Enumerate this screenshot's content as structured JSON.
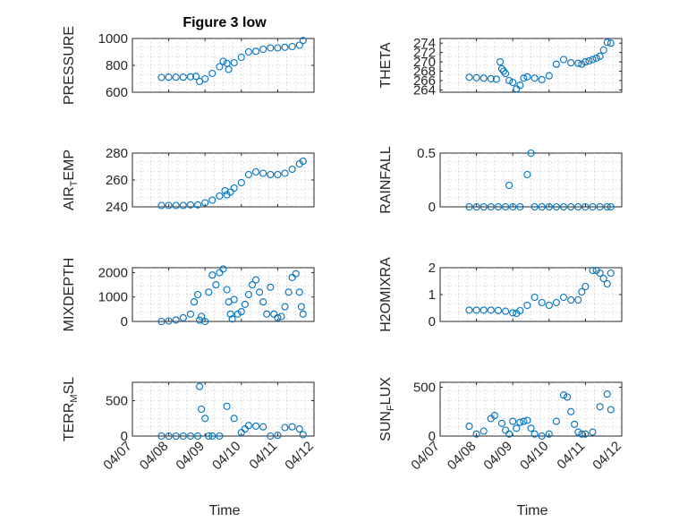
{
  "figure": {
    "title": "Figure 3 low",
    "xlabel": "Time",
    "marker_color": "#0072BD",
    "x_ticks": [
      "04/07",
      "04/08",
      "04/09",
      "04/10",
      "04/11",
      "04/12"
    ]
  },
  "chart_data": [
    {
      "type": "scatter",
      "ylabel": "PRESSURE",
      "ylim": [
        600,
        1000
      ],
      "yticks": [
        "600",
        "800",
        "1000"
      ],
      "yticks_values": [
        600,
        800,
        1000
      ],
      "xlim": [
        0,
        5
      ],
      "grid": true,
      "series": [
        {
          "x": [
            0.8,
            1.0,
            1.2,
            1.4,
            1.6,
            1.75,
            1.85,
            2.0,
            2.2,
            2.4,
            2.5,
            2.6,
            2.65,
            2.8,
            3.0,
            3.2,
            3.4,
            3.6,
            3.8,
            4.0,
            4.2,
            4.4,
            4.6,
            4.7
          ],
          "y": [
            710,
            712,
            712,
            712,
            715,
            718,
            680,
            700,
            740,
            790,
            830,
            815,
            770,
            820,
            860,
            900,
            905,
            920,
            930,
            930,
            935,
            940,
            950,
            985
          ]
        }
      ]
    },
    {
      "type": "scatter",
      "ylabel": "THETA",
      "ylim": [
        263.5,
        275
      ],
      "yticks": [
        "264",
        "266",
        "268",
        "270",
        "272",
        "274"
      ],
      "yticks_values": [
        264,
        266,
        268,
        270,
        272,
        274
      ],
      "xlim": [
        0,
        5
      ],
      "grid": true,
      "series": [
        {
          "x": [
            0.8,
            1.0,
            1.2,
            1.4,
            1.55,
            1.65,
            1.7,
            1.75,
            1.8,
            1.9,
            2.0,
            2.1,
            2.2,
            2.3,
            2.4,
            2.6,
            2.8,
            3.0,
            3.2,
            3.4,
            3.6,
            3.8,
            3.9,
            4.0,
            4.1,
            4.2,
            4.3,
            4.4,
            4.5,
            4.6,
            4.7
          ],
          "y": [
            266.7,
            266.6,
            266.5,
            266.4,
            266.3,
            270.0,
            268.5,
            268.0,
            267.5,
            266.0,
            265.6,
            264.2,
            265.0,
            266.5,
            266.8,
            266.5,
            266.2,
            267.0,
            269.5,
            270.5,
            269.8,
            269.7,
            269.5,
            270.0,
            270.2,
            270.5,
            270.8,
            271.2,
            272.5,
            274.2,
            274.0
          ]
        }
      ]
    },
    {
      "type": "scatter",
      "ylabel": "AIR_TEMP",
      "ylim": [
        240,
        280
      ],
      "yticks": [
        "240",
        "260",
        "280"
      ],
      "yticks_values": [
        240,
        260,
        280
      ],
      "xlim": [
        0,
        5
      ],
      "grid": true,
      "series": [
        {
          "x": [
            0.8,
            1.0,
            1.2,
            1.4,
            1.6,
            1.8,
            2.0,
            2.2,
            2.4,
            2.55,
            2.6,
            2.7,
            2.8,
            3.0,
            3.2,
            3.4,
            3.6,
            3.8,
            4.0,
            4.2,
            4.4,
            4.6,
            4.7
          ],
          "y": [
            241,
            241,
            241,
            241,
            241.5,
            241.5,
            243,
            245,
            248,
            252,
            249,
            251,
            254,
            258,
            264,
            266,
            265,
            264,
            264,
            265,
            268,
            272,
            274
          ]
        }
      ]
    },
    {
      "type": "scatter",
      "ylabel": "RAINFALL",
      "ylim": [
        0,
        0.5
      ],
      "yticks": [
        "0",
        "0.5"
      ],
      "yticks_values": [
        0,
        0.5
      ],
      "xlim": [
        0,
        5
      ],
      "grid": true,
      "series": [
        {
          "x": [
            0.8,
            1.0,
            1.2,
            1.4,
            1.6,
            1.8,
            1.9,
            2.0,
            2.2,
            2.4,
            2.5,
            2.6,
            2.8,
            3.0,
            3.2,
            3.4,
            3.6,
            3.8,
            4.0,
            4.2,
            4.4,
            4.6,
            4.7
          ],
          "y": [
            0,
            0,
            0,
            0,
            0,
            0,
            0.2,
            0,
            0,
            0.3,
            0.5,
            0,
            0,
            0,
            0,
            0,
            0,
            0,
            0,
            0,
            0,
            0,
            0
          ]
        }
      ]
    },
    {
      "type": "scatter",
      "ylabel": "MIXDEPTH",
      "ylim": [
        0,
        2200
      ],
      "yticks": [
        "0",
        "1000",
        "2000"
      ],
      "yticks_values": [
        0,
        1000,
        2000
      ],
      "xlim": [
        0,
        5
      ],
      "grid": true,
      "series": [
        {
          "x": [
            0.8,
            1.0,
            1.2,
            1.4,
            1.6,
            1.7,
            1.8,
            1.85,
            1.9,
            2.0,
            2.1,
            2.2,
            2.3,
            2.4,
            2.5,
            2.6,
            2.65,
            2.7,
            2.75,
            2.8,
            2.9,
            3.0,
            3.1,
            3.2,
            3.3,
            3.4,
            3.5,
            3.6,
            3.7,
            3.8,
            3.9,
            4.0,
            4.1,
            4.2,
            4.3,
            4.4,
            4.5,
            4.6,
            4.65,
            4.7
          ],
          "y": [
            0,
            20,
            60,
            150,
            300,
            800,
            1100,
            50,
            200,
            0,
            1200,
            1900,
            1500,
            2000,
            2150,
            1300,
            800,
            300,
            100,
            900,
            300,
            400,
            700,
            1100,
            1500,
            1700,
            1200,
            800,
            300,
            1400,
            300,
            150,
            200,
            600,
            1200,
            1800,
            1950,
            1200,
            600,
            300
          ]
        }
      ]
    },
    {
      "type": "scatter",
      "ylabel": "H2OMIXRA",
      "ylim": [
        0,
        2
      ],
      "yticks": [
        "0",
        "1",
        "2"
      ],
      "yticks_values": [
        0,
        1,
        2
      ],
      "xlim": [
        0,
        5
      ],
      "grid": true,
      "series": [
        {
          "x": [
            0.8,
            1.0,
            1.2,
            1.4,
            1.6,
            1.8,
            2.0,
            2.1,
            2.2,
            2.4,
            2.6,
            2.8,
            3.0,
            3.2,
            3.4,
            3.6,
            3.8,
            3.9,
            4.0,
            4.2,
            4.3,
            4.4,
            4.5,
            4.6,
            4.7
          ],
          "y": [
            0.42,
            0.42,
            0.42,
            0.42,
            0.41,
            0.38,
            0.32,
            0.3,
            0.4,
            0.6,
            0.9,
            0.7,
            0.6,
            0.7,
            0.9,
            0.8,
            0.8,
            1.1,
            1.3,
            1.9,
            1.9,
            1.8,
            1.6,
            1.4,
            1.8
          ]
        }
      ]
    },
    {
      "type": "scatter",
      "ylabel": "TERR_MSL",
      "ylim": [
        0,
        760
      ],
      "yticks": [
        "0",
        "500"
      ],
      "yticks_values": [
        0,
        500
      ],
      "xlim": [
        0,
        5
      ],
      "grid": true,
      "series": [
        {
          "x": [
            0.8,
            1.0,
            1.2,
            1.4,
            1.6,
            1.8,
            1.85,
            1.9,
            2.0,
            2.1,
            2.2,
            2.4,
            2.6,
            2.8,
            3.0,
            3.1,
            3.2,
            3.4,
            3.6,
            3.8,
            4.0,
            4.2,
            4.4,
            4.6,
            4.7
          ],
          "y": [
            0,
            0,
            0,
            0,
            0,
            0,
            700,
            380,
            250,
            0,
            0,
            0,
            420,
            250,
            50,
            100,
            150,
            140,
            130,
            0,
            10,
            120,
            130,
            100,
            20
          ]
        }
      ]
    },
    {
      "type": "scatter",
      "ylabel": "SUN_FLUX",
      "ylim": [
        0,
        550
      ],
      "yticks": [
        "0",
        "500"
      ],
      "yticks_values": [
        0,
        500
      ],
      "xlim": [
        0,
        5
      ],
      "grid": true,
      "series": [
        {
          "x": [
            0.8,
            1.0,
            1.2,
            1.4,
            1.5,
            1.7,
            1.8,
            1.9,
            2.0,
            2.1,
            2.2,
            2.3,
            2.4,
            2.5,
            2.6,
            2.8,
            3.0,
            3.2,
            3.4,
            3.5,
            3.6,
            3.7,
            3.8,
            3.9,
            4.0,
            4.2,
            4.4,
            4.6,
            4.7
          ],
          "y": [
            100,
            20,
            50,
            180,
            210,
            130,
            60,
            20,
            150,
            80,
            140,
            150,
            160,
            80,
            20,
            0,
            20,
            150,
            420,
            400,
            250,
            120,
            40,
            20,
            20,
            40,
            300,
            430,
            270
          ]
        }
      ]
    }
  ]
}
